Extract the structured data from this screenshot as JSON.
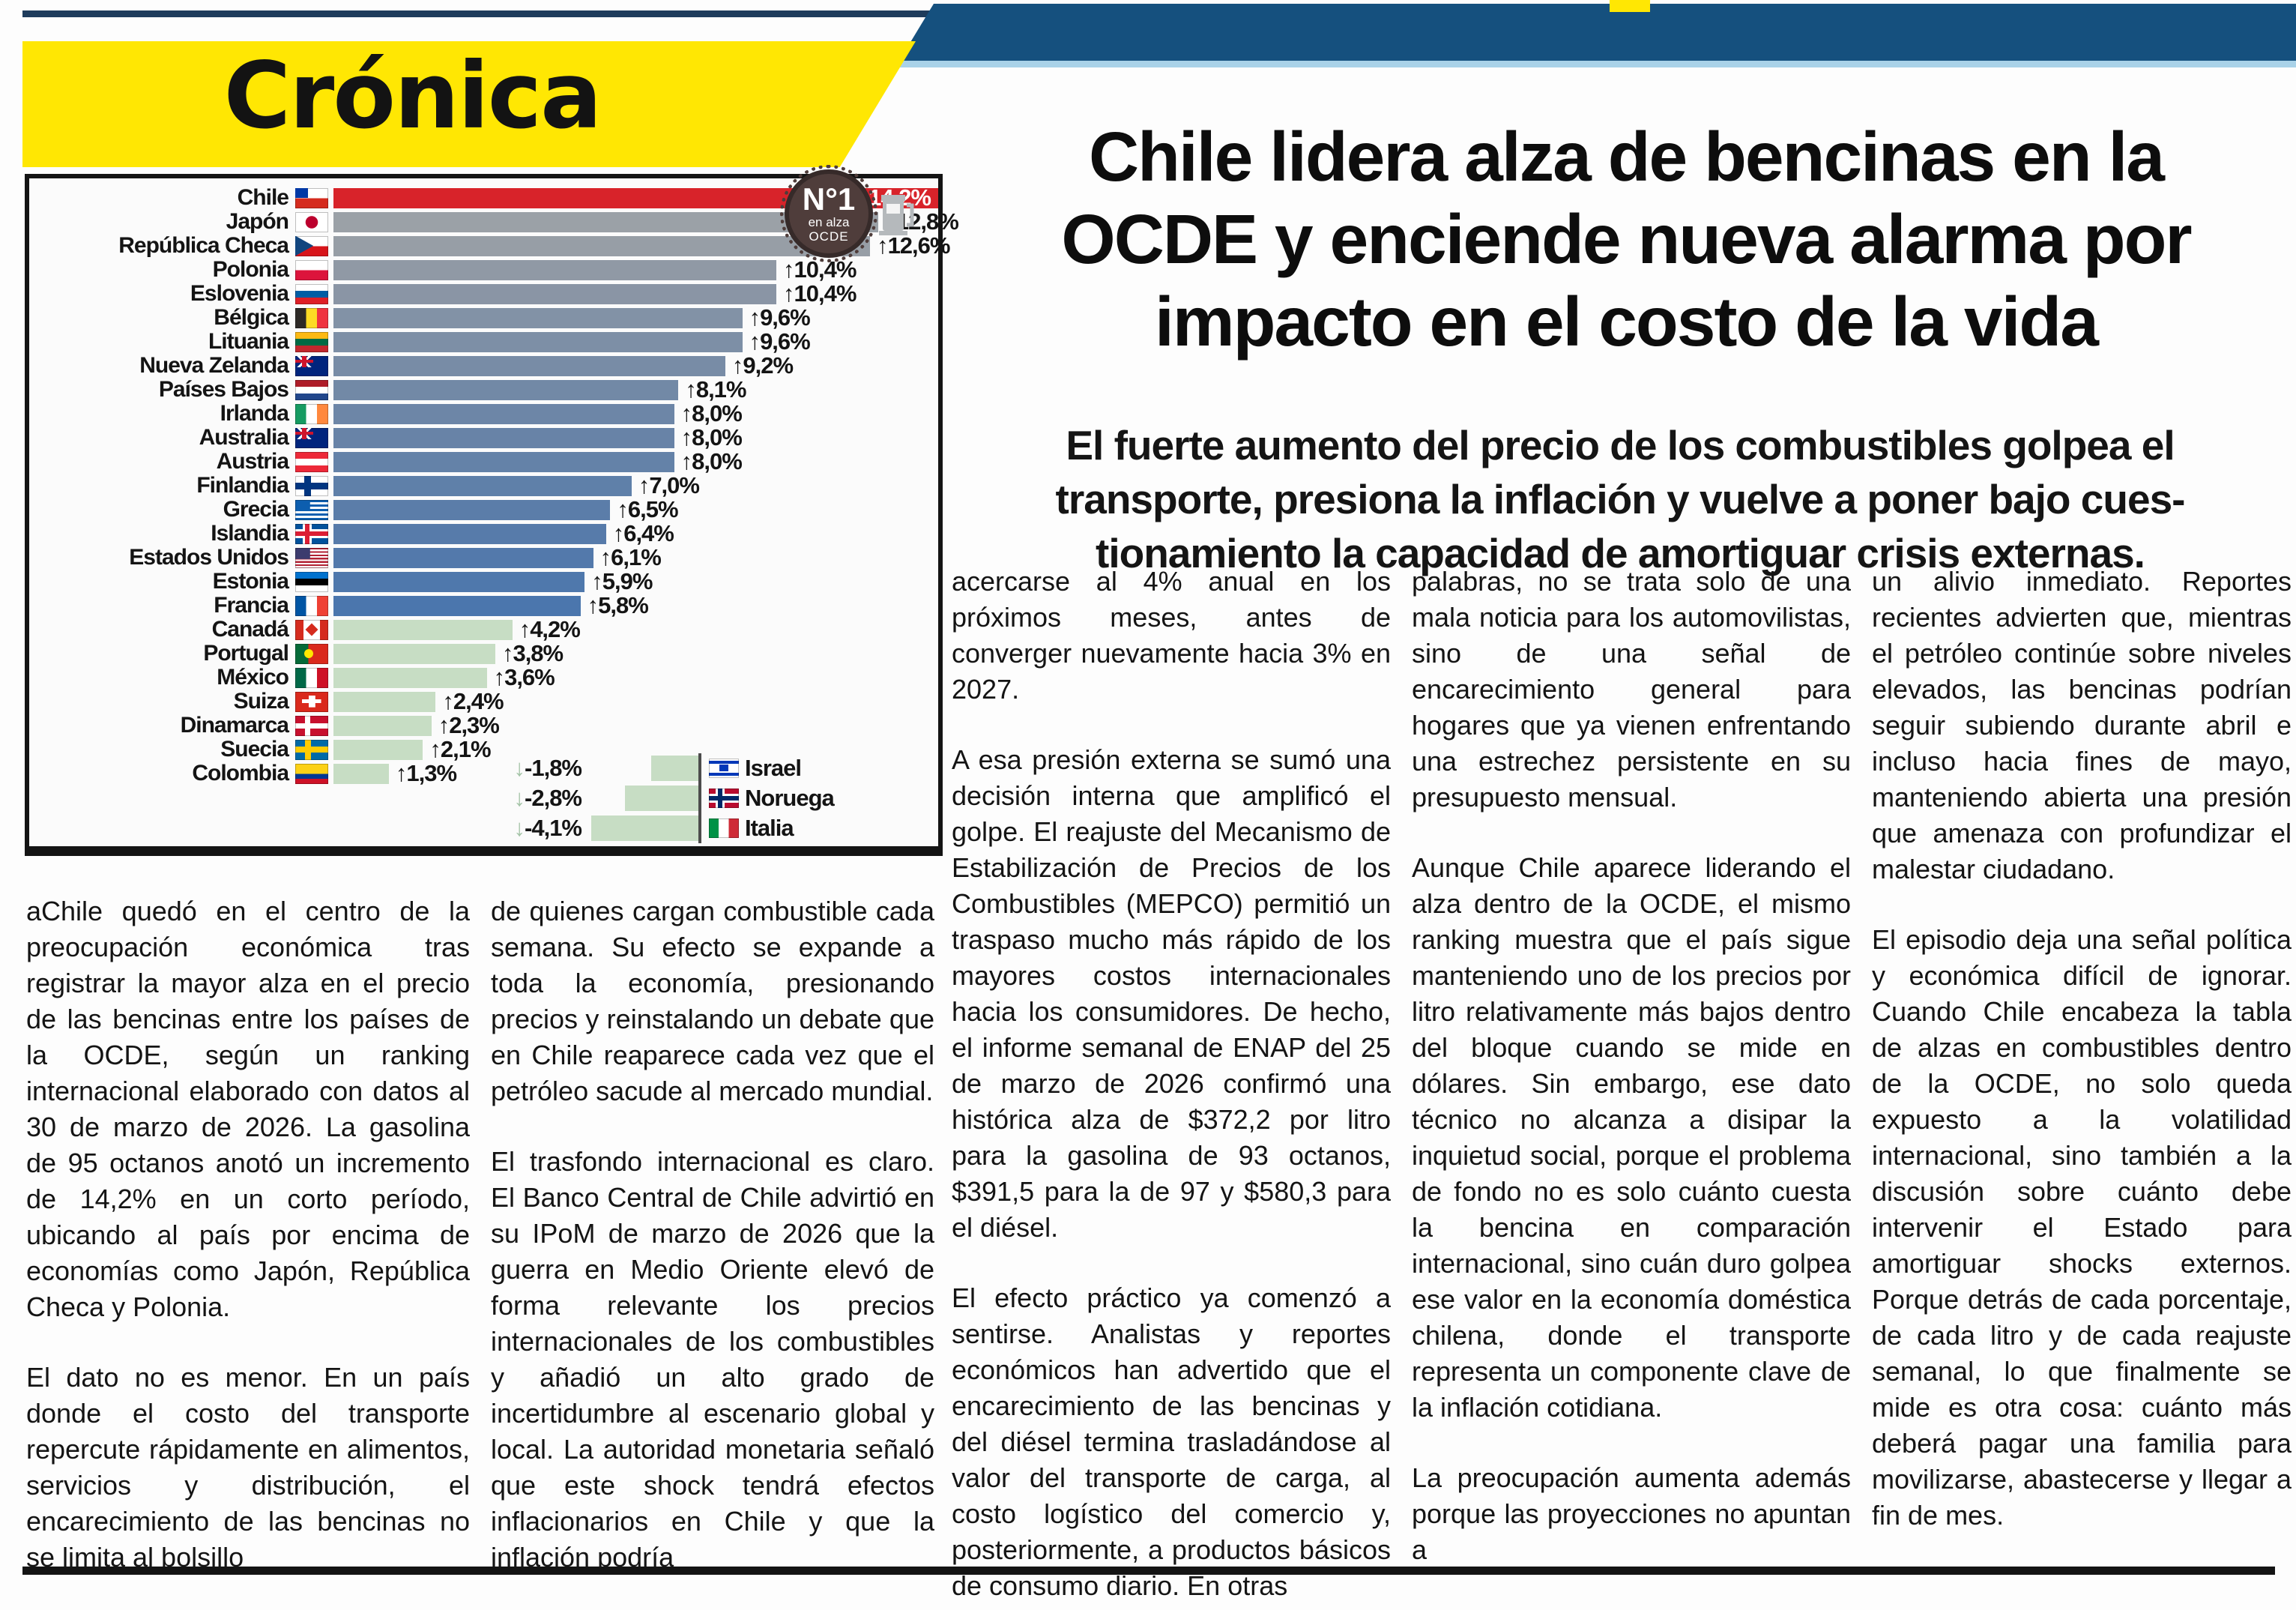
{
  "colors": {
    "banner_yellow": "#ffe703",
    "masthead_blue": "#15507e",
    "masthead_lightblue": "#a9d2e8",
    "accent_red": "#d8232a",
    "mild_green": "#c7ddc4",
    "badge_brown": "#4f3d3b"
  },
  "masthead": {
    "section_label": "Crónica"
  },
  "headline": "Chile lidera alza de bencinas en la\nOCDE y enciende nueva alarma por\nimpacto en el costo de la vida",
  "subheadline": "El fuerte aumento del precio de los combustibles golpea el\ntransporte, presiona la inflación y vuelve a poner bajo cues-\ntionamiento la capacidad de amortiguar crisis externas.",
  "chart_data": {
    "type": "bar",
    "orientation": "horizontal",
    "unit": "%",
    "value_suffix": "%",
    "max_value": 14.2,
    "badge": {
      "line1": "N°1",
      "line2": "en alza",
      "line3": "OCDE"
    },
    "icon": "fuel-pump-icon",
    "rows": [
      {
        "country": "Chile",
        "flag": "cl",
        "value": 14.2,
        "label": "14,2%",
        "color": "#d8232a",
        "highlight": true
      },
      {
        "country": "Japón",
        "flag": "jp",
        "value": 12.8,
        "label": "12,8%",
        "color": "#9ba1a7"
      },
      {
        "country": "República Checa",
        "flag": "cz",
        "value": 12.6,
        "label": "12,6%",
        "color": "#979ea6"
      },
      {
        "country": "Polonia",
        "flag": "pl",
        "value": 10.4,
        "label": "10,4%",
        "color": "#9099a5"
      },
      {
        "country": "Eslovenia",
        "flag": "si",
        "value": 10.4,
        "label": "10,4%",
        "color": "#8a95a5"
      },
      {
        "country": "Bélgica",
        "flag": "be",
        "value": 9.6,
        "label": "9,6%",
        "color": "#8292a6"
      },
      {
        "country": "Lituania",
        "flag": "lt",
        "value": 9.6,
        "label": "9,6%",
        "color": "#7d8fa6"
      },
      {
        "country": "Nueva Zelanda",
        "flag": "nz",
        "value": 9.2,
        "label": "9,2%",
        "color": "#788ca6"
      },
      {
        "country": "Países Bajos",
        "flag": "nl",
        "value": 8.1,
        "label": "8,1%",
        "color": "#7289a6"
      },
      {
        "country": "Irlanda",
        "flag": "ie",
        "value": 8.0,
        "label": "8,0%",
        "color": "#6d86a7"
      },
      {
        "country": "Australia",
        "flag": "au",
        "value": 8.0,
        "label": "8,0%",
        "color": "#6883a7"
      },
      {
        "country": "Austria",
        "flag": "at",
        "value": 8.0,
        "label": "8,0%",
        "color": "#6482a8"
      },
      {
        "country": "Finlandia",
        "flag": "fi",
        "value": 7.0,
        "label": "7,0%",
        "color": "#5f80a9"
      },
      {
        "country": "Grecia",
        "flag": "gr",
        "value": 6.5,
        "label": "6,5%",
        "color": "#5b7da9"
      },
      {
        "country": "Islandia",
        "flag": "is",
        "value": 6.4,
        "label": "6,4%",
        "color": "#577baa"
      },
      {
        "country": "Estados Unidos",
        "flag": "us",
        "value": 6.1,
        "label": "6,1%",
        "color": "#5379ab"
      },
      {
        "country": "Estonia",
        "flag": "ee",
        "value": 5.9,
        "label": "5,9%",
        "color": "#4f78ac"
      },
      {
        "country": "Francia",
        "flag": "fr",
        "value": 5.8,
        "label": "5,8%",
        "color": "#4b76ad"
      },
      {
        "country": "Canadá",
        "flag": "ca",
        "value": 4.2,
        "label": "4,2%",
        "color": "#c7ddc4"
      },
      {
        "country": "Portugal",
        "flag": "pt",
        "value": 3.8,
        "label": "3,8%",
        "color": "#c7ddc4"
      },
      {
        "country": "México",
        "flag": "mx",
        "value": 3.6,
        "label": "3,6%",
        "color": "#c7ddc4"
      },
      {
        "country": "Suiza",
        "flag": "ch",
        "value": 2.4,
        "label": "2,4%",
        "color": "#c7ddc4"
      },
      {
        "country": "Dinamarca",
        "flag": "dk",
        "value": 2.3,
        "label": "2,3%",
        "color": "#c7ddc4"
      },
      {
        "country": "Suecia",
        "flag": "se",
        "value": 2.1,
        "label": "2,1%",
        "color": "#c7ddc4"
      },
      {
        "country": "Colombia",
        "flag": "co",
        "value": 1.3,
        "label": "1,3%",
        "color": "#c7ddc4"
      }
    ],
    "negative_rows": [
      {
        "country": "Israel",
        "flag": "il",
        "value": -1.8,
        "label": "-1,8%",
        "color": "#c7ddc4"
      },
      {
        "country": "Noruega",
        "flag": "no",
        "value": -2.8,
        "label": "-2,8%",
        "color": "#c7ddc4"
      },
      {
        "country": "Italia",
        "flag": "it",
        "value": -4.1,
        "label": "-4,1%",
        "color": "#c7ddc4"
      }
    ]
  },
  "columns": [
    [
      "aChile quedó en el centro de la preocupación económica tras registrar la mayor alza en el precio de las bencinas entre los países de la OCDE, según un ranking internacional elaborado con datos al 30 de marzo de 2026. La gasolina de 95 octanos anotó un incremento de 14,2% en un corto período, ubicando al país por encima de economías como Japón, República Checa y Polonia.",
      "El dato no es menor. En un país donde el costo del transporte repercute rápidamente en alimentos, servicios y distribución, el encarecimiento de las bencinas no se limita al bolsillo"
    ],
    [
      "de quienes cargan combustible cada semana. Su efecto se expande a toda la economía, presionando precios y reinstalando un debate que en Chile reaparece cada vez que el petróleo sacude al mercado mundial.",
      "El trasfondo internacional es claro. El Banco Central de Chile advirtió en su IPoM de marzo de 2026 que la guerra en Medio Oriente elevó de forma relevante los precios internacionales de los combustibles y añadió un alto grado de incertidumbre al escenario global y local. La autoridad monetaria señaló que este shock tendrá efectos inflacionarios en Chile y que la inflación podría"
    ],
    [
      "acercarse al 4% anual en los próximos meses, antes de converger nuevamente hacia 3% en 2027.",
      "A esa presión externa se sumó una decisión interna que amplificó el golpe. El reajuste del Mecanismo de Estabilización de Precios de los Combustibles (MEPCO) permitió un traspaso mucho más rápido de los mayores costos internacionales hacia los consumidores. De hecho, el informe semanal de ENAP del 25 de marzo de 2026 confirmó una histórica alza de $372,2 por litro para la gasolina de 93 octanos, $391,5 para la de 97 y $580,3 para el diésel.",
      "El efecto práctico ya comenzó a sentirse. Analistas y reportes económicos han advertido que el encarecimiento de las bencinas y del diésel termina trasladándose al valor del transporte de carga, al costo logístico del comercio y, posteriormente, a productos básicos de consumo diario. En otras"
    ],
    [
      "palabras, no se trata solo de una mala noticia para los automovilistas, sino de una señal de encarecimiento general para hogares que ya vienen enfrentando una estrechez persistente en su presupuesto mensual.",
      "Aunque Chile aparece liderando el alza dentro de la OCDE, el mismo ranking muestra que el país sigue manteniendo uno de los precios por litro relativamente más bajos dentro del bloque cuando se mide en dólares. Sin embargo, ese dato técnico no alcanza a disipar la inquietud social, porque el problema de fondo no es solo cuánto cuesta la bencina en comparación internacional, sino cuán duro golpea ese valor en la economía doméstica chilena, donde el transporte representa un componente clave de la inflación cotidiana.",
      "La preocupación aumenta además porque las proyecciones no apuntan a"
    ],
    [
      "un alivio inmediato. Reportes recientes advierten que, mientras el petróleo continúe sobre niveles elevados, las bencinas podrían seguir subiendo durante abril e incluso hacia fines de mayo, manteniendo abierta una presión que amenaza con profundizar el malestar ciudadano.",
      "El episodio deja una señal política y económica difícil de ignorar. Cuando Chile encabeza la tabla de alzas en combustibles dentro de la OCDE, no solo queda expuesto a la volatilidad internacional, sino también a la discusión sobre cuánto debe intervenir el Estado para amortiguar shocks externos. Porque detrás de cada porcentaje, de cada litro y de cada reajuste semanal, lo que finalmente se mide es otra cosa: cuánto más deberá pagar una familia para movilizarse, abastecerse y llegar a fin de mes."
    ]
  ]
}
